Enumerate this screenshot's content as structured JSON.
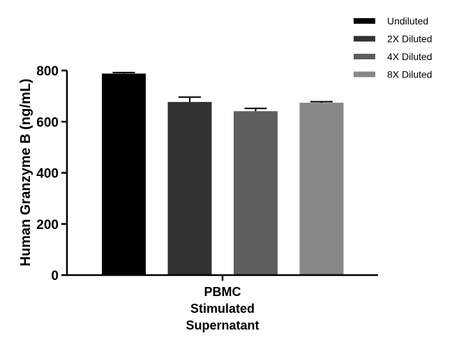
{
  "chart_data": {
    "type": "bar",
    "categories": [
      "PBMC Stimulated Supernatant"
    ],
    "category_lines": [
      "PBMC",
      "Stimulated",
      "Supernatant"
    ],
    "series": [
      {
        "name": "Undiluted",
        "values": [
          788
        ],
        "error": [
          4
        ],
        "color": "#000000"
      },
      {
        "name": "2X Diluted",
        "values": [
          677
        ],
        "error": [
          19
        ],
        "color": "#323232"
      },
      {
        "name": "4X Diluted",
        "values": [
          641
        ],
        "error": [
          11
        ],
        "color": "#5e5e5e"
      },
      {
        "name": "8X Diluted",
        "values": [
          674
        ],
        "error": [
          4
        ],
        "color": "#878787"
      }
    ],
    "xlabel": "",
    "ylabel": "Human Granzyme B (ng/mL)",
    "ylim": [
      0,
      800
    ],
    "yticks": [
      0,
      200,
      400,
      600,
      800
    ],
    "grid": false,
    "legend": "top-right"
  }
}
